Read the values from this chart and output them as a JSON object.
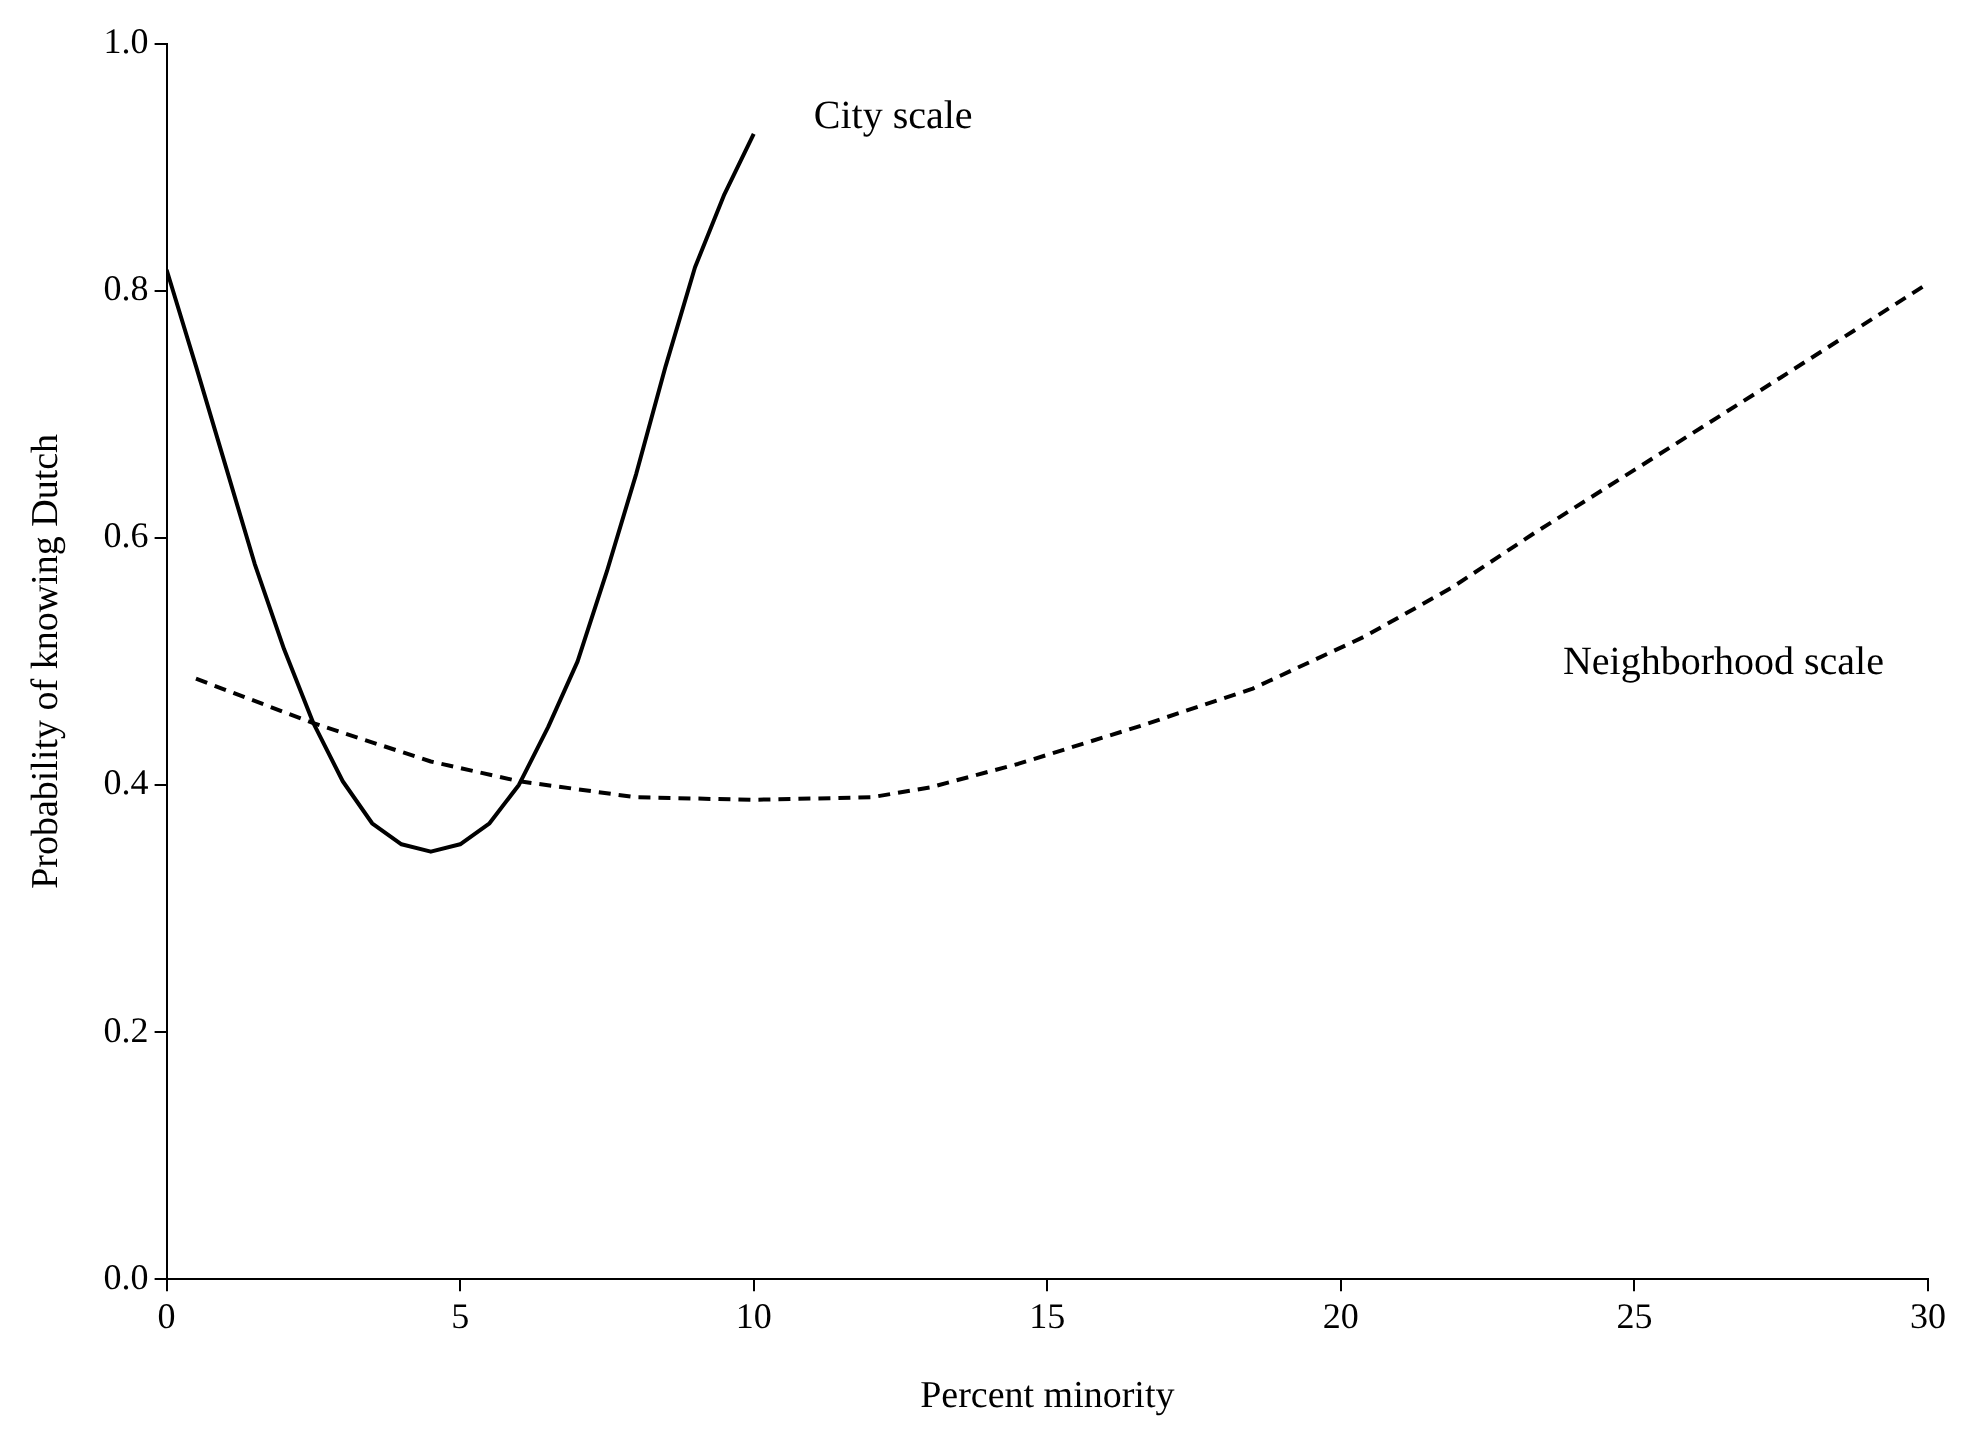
{
  "chart_data": {
    "type": "line",
    "xlabel": "Percent minority",
    "ylabel": "Probability of knowing Dutch",
    "series": [
      {
        "name": "City scale",
        "color": "#000000",
        "line_style": "solid",
        "x": [
          0,
          0.5,
          1,
          1.5,
          2,
          2.5,
          3,
          3.5,
          4,
          4.5,
          5,
          5.5,
          6,
          6.5,
          7,
          7.5,
          8,
          8.5,
          9,
          9.5,
          10
        ],
        "values": [
          0.817,
          0.739,
          0.659,
          0.579,
          0.51,
          0.45,
          0.403,
          0.369,
          0.352,
          0.346,
          0.352,
          0.369,
          0.4,
          0.447,
          0.5,
          0.573,
          0.652,
          0.739,
          0.819,
          0.878,
          0.927
        ]
      },
      {
        "name": "Neighborhood scale",
        "color": "#000000",
        "line_style": "dashed",
        "x": [
          0.5,
          2.5,
          4.5,
          6,
          8,
          10,
          12,
          13,
          14.5,
          16.6,
          18.5,
          20.4,
          21.9,
          23.3,
          25,
          27.5,
          30
        ],
        "values": [
          0.486,
          0.45,
          0.419,
          0.403,
          0.39,
          0.388,
          0.39,
          0.398,
          0.417,
          0.448,
          0.478,
          0.52,
          0.56,
          0.604,
          0.655,
          0.73,
          0.806
        ]
      }
    ],
    "xlim": [
      0,
      30
    ],
    "xticks": [
      0,
      5,
      10,
      15,
      20,
      25,
      30
    ],
    "ylim": [
      0,
      1
    ],
    "yticks": [
      {
        "value": 0,
        "label": "0.0"
      },
      {
        "value": 0.2,
        "label": "0.2"
      },
      {
        "value": 0.4,
        "label": "0.4"
      },
      {
        "value": 0.6,
        "label": "0.6"
      },
      {
        "value": 0.8,
        "label": "0.8"
      },
      {
        "value": 1,
        "label": "1.0"
      }
    ],
    "grid": false,
    "legend": false
  }
}
